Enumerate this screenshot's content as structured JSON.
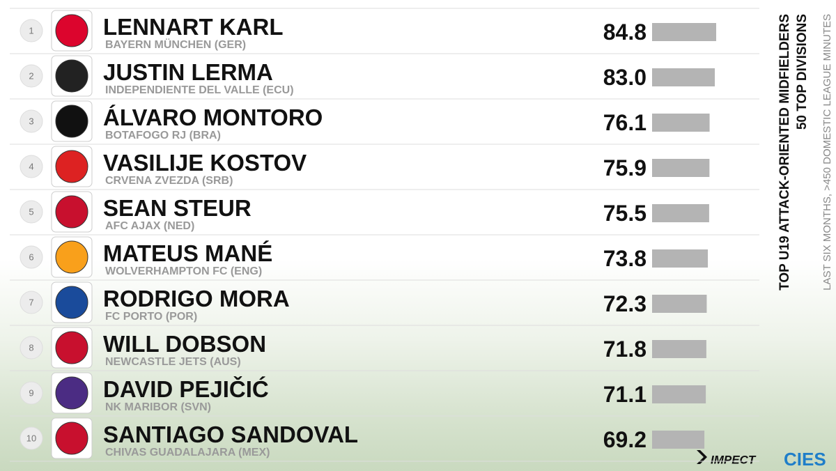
{
  "chart_data": {
    "type": "bar",
    "title": "TOP U19 ATTACK-ORIENTED MIDFIELDERS",
    "subtitle": "50 TOP DIVISIONS",
    "note": "LAST SIX MONTHS, >450 DOMESTIC LEAGUE MINUTES",
    "ranks": [
      1,
      2,
      3,
      4,
      5,
      6,
      7,
      8,
      9,
      10
    ],
    "categories": [
      "LENNART KARL",
      "JUSTIN LERMA",
      "ÁLVARO MONTORO",
      "VASILIJE KOSTOV",
      "SEAN STEUR",
      "MATEUS MANÉ",
      "RODRIGO MORA",
      "WILL DOBSON",
      "DAVID PEJIČIĆ",
      "SANTIAGO SANDOVAL"
    ],
    "clubs": [
      "BAYERN MÜNCHEN (GER)",
      "INDEPENDIENTE DEL VALLE (ECU)",
      "BOTAFOGO RJ (BRA)",
      "CRVENA ZVEZDA (SRB)",
      "AFC AJAX (NED)",
      "WOLVERHAMPTON FC (ENG)",
      "FC PORTO (POR)",
      "NEWCASTLE JETS (AUS)",
      "NK MARIBOR (SVN)",
      "CHIVAS GUADALAJARA (MEX)"
    ],
    "values": [
      84.8,
      83.0,
      76.1,
      75.9,
      75.5,
      73.8,
      72.3,
      71.8,
      71.1,
      69.2
    ],
    "value_labels": [
      "84.8",
      "83.0",
      "76.1",
      "75.9",
      "75.5",
      "73.8",
      "72.3",
      "71.8",
      "71.1",
      "69.2"
    ],
    "color": "#b4b4b4",
    "logos": [
      "IMPECT",
      "CIES"
    ]
  }
}
